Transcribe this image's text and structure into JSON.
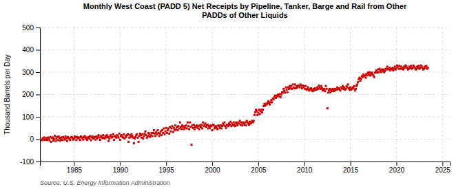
{
  "chart_data": {
    "type": "scatter",
    "title": "Monthly West Coast (PADD 5) Net Receipts by Pipeline, Tanker, Barge and Rail from Other\nPADDs of Other Liquids",
    "ylabel": "Thousand Barrels per Day",
    "source": "Source: U.S. Energy Information Administration",
    "color": "#CC0000",
    "marker": "square",
    "grid": true,
    "xlim": [
      1981.3,
      2025.8
    ],
    "xticks": [
      1985,
      1990,
      1995,
      2000,
      2005,
      2010,
      2015,
      2020,
      2025
    ],
    "ylim": [
      -100,
      500
    ],
    "yticks": [
      -100,
      0,
      100,
      200,
      300,
      400,
      500
    ],
    "x": [
      1981.5,
      1981.5833333333333,
      1981.6666666666667,
      1981.75,
      1981.8333333333333,
      1981.9166666666667,
      1982,
      1982.0833333333333,
      1982.1666666666667,
      1982.25,
      1982.3333333333333,
      1982.4166666666667,
      1982.5,
      1982.5833333333333,
      1982.6666666666667,
      1982.75,
      1982.8333333333333,
      1982.9166666666667,
      1983,
      1983.0833333333333,
      1983.1666666666667,
      1983.25,
      1983.3333333333333,
      1983.4166666666667,
      1983.5,
      1983.5833333333333,
      1983.6666666666667,
      1983.75,
      1983.8333333333333,
      1983.9166666666667,
      1984,
      1984.0833333333333,
      1984.1666666666667,
      1984.25,
      1984.3333333333333,
      1984.4166666666667,
      1984.5,
      1984.5833333333333,
      1984.6666666666667,
      1984.75,
      1984.8333333333333,
      1984.9166666666667,
      1985,
      1985.0833333333333,
      1985.1666666666667,
      1985.25,
      1985.3333333333333,
      1985.4166666666667,
      1985.5,
      1985.5833333333333,
      1985.6666666666667,
      1985.75,
      1985.8333333333333,
      1985.9166666666667,
      1986,
      1986.0833333333333,
      1986.1666666666667,
      1986.25,
      1986.3333333333333,
      1986.4166666666667,
      1986.5,
      1986.5833333333333,
      1986.6666666666667,
      1986.75,
      1986.8333333333333,
      1986.9166666666667,
      1987,
      1987.0833333333333,
      1987.1666666666667,
      1987.25,
      1987.3333333333333,
      1987.4166666666667,
      1987.5,
      1987.5833333333333,
      1987.6666666666667,
      1987.75,
      1987.8333333333333,
      1987.9166666666667,
      1988,
      1988.0833333333333,
      1988.1666666666667,
      1988.25,
      1988.3333333333333,
      1988.4166666666667,
      1988.5,
      1988.5833333333333,
      1988.6666666666667,
      1988.75,
      1988.8333333333333,
      1988.9166666666667,
      1989,
      1989.0833333333333,
      1989.1666666666667,
      1989.25,
      1989.3333333333333,
      1989.4166666666667,
      1989.5,
      1989.5833333333333,
      1989.6666666666667,
      1989.75,
      1989.8333333333333,
      1989.9166666666667,
      1990,
      1990.0833333333333,
      1990.1666666666667,
      1990.25,
      1990.3333333333333,
      1990.4166666666667,
      1990.5,
      1990.5833333333333,
      1990.6666666666667,
      1990.75,
      1990.8333333333333,
      1990.9166666666667,
      1991,
      1991.0833333333333,
      1991.1666666666667,
      1991.25,
      1991.3333333333333,
      1991.4166666666667,
      1991.5,
      1991.5833333333333,
      1991.6666666666667,
      1991.75,
      1991.8333333333333,
      1991.9166666666667,
      1992,
      1992.0833333333333,
      1992.1666666666667,
      1992.25,
      1992.3333333333333,
      1992.4166666666667,
      1992.5,
      1992.5833333333333,
      1992.6666666666667,
      1992.75,
      1992.8333333333333,
      1992.9166666666667,
      1993,
      1993.0833333333333,
      1993.1666666666667,
      1993.25,
      1993.3333333333333,
      1993.4166666666667,
      1993.5,
      1993.5833333333333,
      1993.6666666666667,
      1993.75,
      1993.8333333333333,
      1993.9166666666667,
      1994,
      1994.0833333333333,
      1994.1666666666667,
      1994.25,
      1994.3333333333333,
      1994.4166666666667,
      1994.5,
      1994.5833333333333,
      1994.6666666666667,
      1994.75,
      1994.8333333333333,
      1994.9166666666667,
      1995,
      1995.0833333333333,
      1995.1666666666667,
      1995.25,
      1995.3333333333333,
      1995.4166666666667,
      1995.5,
      1995.5833333333333,
      1995.6666666666667,
      1995.75,
      1995.8333333333333,
      1995.9166666666667,
      1996,
      1996.0833333333333,
      1996.1666666666667,
      1996.25,
      1996.3333333333333,
      1996.4166666666667,
      1996.5,
      1996.5833333333333,
      1996.6666666666667,
      1996.75,
      1996.8333333333333,
      1996.9166666666667,
      1997,
      1997.0833333333333,
      1997.1666666666667,
      1997.25,
      1997.3333333333333,
      1997.4166666666667,
      1997.5,
      1997.5833333333333,
      1997.6666666666667,
      1997.75,
      1997.8333333333333,
      1997.9166666666667,
      1998,
      1998.0833333333333,
      1998.1666666666667,
      1998.25,
      1998.3333333333333,
      1998.4166666666667,
      1998.5,
      1998.5833333333333,
      1998.6666666666667,
      1998.75,
      1998.8333333333333,
      1998.9166666666667,
      1999,
      1999.0833333333333,
      1999.1666666666667,
      1999.25,
      1999.3333333333333,
      1999.4166666666667,
      1999.5,
      1999.5833333333333,
      1999.6666666666667,
      1999.75,
      1999.8333333333333,
      1999.9166666666667,
      2000,
      2000.0833333333333,
      2000.1666666666667,
      2000.25,
      2000.3333333333333,
      2000.4166666666667,
      2000.5,
      2000.5833333333333,
      2000.6666666666667,
      2000.75,
      2000.8333333333333,
      2000.9166666666667,
      2001,
      2001.0833333333333,
      2001.1666666666667,
      2001.25,
      2001.3333333333333,
      2001.4166666666667,
      2001.5,
      2001.5833333333333,
      2001.6666666666667,
      2001.75,
      2001.8333333333333,
      2001.9166666666667,
      2002,
      2002.0833333333333,
      2002.1666666666667,
      2002.25,
      2002.3333333333333,
      2002.4166666666667,
      2002.5,
      2002.5833333333333,
      2002.6666666666667,
      2002.75,
      2002.8333333333333,
      2002.9166666666667,
      2003,
      2003.0833333333333,
      2003.1666666666667,
      2003.25,
      2003.3333333333333,
      2003.4166666666667,
      2003.5,
      2003.5833333333333,
      2003.6666666666667,
      2003.75,
      2003.8333333333333,
      2003.9166666666667,
      2004,
      2004.0833333333333,
      2004.1666666666667,
      2004.25,
      2004.3333333333333,
      2004.4166666666667,
      2004.5,
      2004.5833333333333,
      2004.6666666666667,
      2004.75,
      2004.8333333333333,
      2004.9166666666667,
      2005,
      2005.0833333333333,
      2005.1666666666667,
      2005.25,
      2005.3333333333333,
      2005.4166666666667,
      2005.5,
      2005.5833333333333,
      2005.6666666666667,
      2005.75,
      2005.8333333333333,
      2005.9166666666667,
      2006,
      2006.0833333333333,
      2006.1666666666667,
      2006.25,
      2006.3333333333333,
      2006.4166666666667,
      2006.5,
      2006.5833333333333,
      2006.6666666666667,
      2006.75,
      2006.8333333333333,
      2006.9166666666667,
      2007,
      2007.0833333333333,
      2007.1666666666667,
      2007.25,
      2007.3333333333333,
      2007.4166666666667,
      2007.5,
      2007.5833333333333,
      2007.6666666666667,
      2007.75,
      2007.8333333333333,
      2007.9166666666667,
      2008,
      2008.0833333333333,
      2008.1666666666667,
      2008.25,
      2008.3333333333333,
      2008.4166666666667,
      2008.5,
      2008.5833333333333,
      2008.6666666666667,
      2008.75,
      2008.8333333333333,
      2008.9166666666667,
      2009,
      2009.0833333333333,
      2009.1666666666667,
      2009.25,
      2009.3333333333333,
      2009.4166666666667,
      2009.5,
      2009.5833333333333,
      2009.6666666666667,
      2009.75,
      2009.8333333333333,
      2009.9166666666667,
      2010,
      2010.0833333333333,
      2010.1666666666667,
      2010.25,
      2010.3333333333333,
      2010.4166666666667,
      2010.5,
      2010.5833333333333,
      2010.6666666666667,
      2010.75,
      2010.8333333333333,
      2010.9166666666667,
      2011,
      2011.0833333333333,
      2011.1666666666667,
      2011.25,
      2011.3333333333333,
      2011.4166666666667,
      2011.5,
      2011.5833333333333,
      2011.6666666666667,
      2011.75,
      2011.8333333333333,
      2011.9166666666667,
      2012,
      2012.0833333333333,
      2012.1666666666667,
      2012.25,
      2012.3333333333333,
      2012.4166666666667,
      2012.5,
      2012.5833333333333,
      2012.6666666666667,
      2012.75,
      2012.8333333333333,
      2012.9166666666667,
      2013,
      2013.0833333333333,
      2013.1666666666667,
      2013.25,
      2013.3333333333333,
      2013.4166666666667,
      2013.5,
      2013.5833333333333,
      2013.6666666666667,
      2013.75,
      2013.8333333333333,
      2013.9166666666667,
      2014,
      2014.0833333333333,
      2014.1666666666667,
      2014.25,
      2014.3333333333333,
      2014.4166666666667,
      2014.5,
      2014.5833333333333,
      2014.6666666666667,
      2014.75,
      2014.8333333333333,
      2014.9166666666667,
      2015,
      2015.0833333333333,
      2015.1666666666667,
      2015.25,
      2015.3333333333333,
      2015.4166666666667,
      2015.5,
      2015.5833333333333,
      2015.6666666666667,
      2015.75,
      2015.8333333333333,
      2015.9166666666667,
      2016,
      2016.0833333333333,
      2016.1666666666667,
      2016.25,
      2016.3333333333333,
      2016.4166666666667,
      2016.5,
      2016.5833333333333,
      2016.6666666666667,
      2016.75,
      2016.8333333333333,
      2016.9166666666667,
      2017,
      2017.0833333333333,
      2017.1666666666667,
      2017.25,
      2017.3333333333333,
      2017.4166666666667,
      2017.5,
      2017.5833333333333,
      2017.6666666666667,
      2017.75,
      2017.8333333333333,
      2017.9166666666667,
      2018,
      2018.0833333333333,
      2018.1666666666667,
      2018.25,
      2018.3333333333333,
      2018.4166666666667,
      2018.5,
      2018.5833333333333,
      2018.6666666666667,
      2018.75,
      2018.8333333333333,
      2018.9166666666667,
      2019,
      2019.0833333333333,
      2019.1666666666667,
      2019.25,
      2019.3333333333333,
      2019.4166666666667,
      2019.5,
      2019.5833333333333,
      2019.6666666666667,
      2019.75,
      2019.8333333333333,
      2019.9166666666667,
      2020,
      2020.0833333333333,
      2020.1666666666667,
      2020.25,
      2020.3333333333333,
      2020.4166666666667,
      2020.5,
      2020.5833333333333,
      2020.6666666666667,
      2020.75,
      2020.8333333333333,
      2020.9166666666667,
      2021,
      2021.0833333333333,
      2021.1666666666667,
      2021.25,
      2021.3333333333333,
      2021.4166666666667,
      2021.5,
      2021.5833333333333,
      2021.6666666666667,
      2021.75,
      2021.8333333333333,
      2021.9166666666667,
      2022,
      2022.0833333333333,
      2022.1666666666667,
      2022.25,
      2022.3333333333333,
      2022.4166666666667,
      2022.5,
      2022.5833333333333,
      2022.6666666666667,
      2022.75,
      2022.8333333333333,
      2022.9166666666667,
      2023,
      2023.0833333333333,
      2023.1666666666667,
      2023.25,
      2023.3333333333333,
      2023.4166666666667
    ],
    "values": [
      -5,
      3,
      -2,
      8,
      -3,
      5,
      2,
      -4,
      7,
      3,
      -5,
      10,
      -12,
      5,
      8,
      -6,
      2,
      15,
      -8,
      3,
      10,
      -4,
      12,
      6,
      -6,
      2,
      8,
      -4,
      10,
      5,
      -2,
      12,
      3,
      -8,
      10,
      5,
      2,
      -4,
      8,
      10,
      5,
      -2,
      3,
      12,
      8,
      -4,
      10,
      5,
      3,
      8,
      -4,
      12,
      8,
      5,
      -2,
      10,
      14,
      3,
      8,
      -3,
      5,
      10,
      3,
      14,
      -5,
      8,
      12,
      3,
      7,
      10,
      -2,
      12,
      3,
      10,
      18,
      7,
      -3,
      14,
      10,
      5,
      18,
      7,
      3,
      14,
      7,
      18,
      10,
      -8,
      3,
      14,
      18,
      7,
      10,
      22,
      -3,
      14,
      10,
      7,
      18,
      14,
      7,
      25,
      -3,
      14,
      18,
      10,
      7,
      22,
      3,
      14,
      10,
      18,
      22,
      -12,
      7,
      18,
      10,
      22,
      14,
      7,
      -18,
      3,
      10,
      18,
      22,
      7,
      -12,
      14,
      25,
      18,
      7,
      22,
      3,
      14,
      25,
      35,
      18,
      7,
      14,
      28,
      22,
      10,
      18,
      28,
      14,
      28,
      40,
      25,
      14,
      32,
      22,
      40,
      28,
      14,
      25,
      35,
      18,
      40,
      28,
      48,
      22,
      35,
      50,
      28,
      40,
      48,
      25,
      55,
      35,
      48,
      58,
      32,
      50,
      40,
      62,
      45,
      55,
      40,
      58,
      48,
      75,
      55,
      45,
      62,
      55,
      45,
      58,
      50,
      62,
      48,
      75,
      58,
      45,
      75,
      55,
      -25,
      62,
      50,
      65,
      45,
      55,
      58,
      62,
      50,
      58,
      45,
      62,
      55,
      65,
      48,
      75,
      58,
      62,
      70,
      55,
      62,
      65,
      48,
      58,
      50,
      62,
      58,
      40,
      65,
      62,
      48,
      55,
      58,
      50,
      45,
      62,
      58,
      50,
      62,
      48,
      58,
      70,
      62,
      75,
      58,
      50,
      65,
      62,
      58,
      70,
      65,
      78,
      58,
      70,
      62,
      75,
      65,
      58,
      75,
      70,
      62,
      75,
      70,
      82,
      65,
      75,
      62,
      75,
      70,
      65,
      75,
      62,
      82,
      75,
      70,
      65,
      78,
      70,
      75,
      82,
      75,
      82,
      108,
      120,
      132,
      125,
      108,
      118,
      132,
      112,
      125,
      132,
      120,
      132,
      148,
      158,
      150,
      158,
      155,
      162,
      170,
      162,
      155,
      165,
      175,
      165,
      182,
      178,
      188,
      195,
      185,
      195,
      192,
      200,
      192,
      202,
      188,
      200,
      210,
      208,
      225,
      215,
      208,
      232,
      222,
      210,
      232,
      225,
      238,
      228,
      238,
      225,
      245,
      232,
      228,
      245,
      228,
      238,
      232,
      240,
      238,
      232,
      245,
      240,
      228,
      240,
      232,
      238,
      225,
      238,
      222,
      225,
      232,
      218,
      222,
      225,
      228,
      218,
      215,
      225,
      218,
      228,
      222,
      222,
      232,
      225,
      240,
      232,
      225,
      238,
      228,
      218,
      222,
      225,
      215,
      238,
      225,
      138,
      208,
      218,
      225,
      210,
      222,
      215,
      225,
      218,
      215,
      225,
      222,
      222,
      232,
      225,
      228,
      222,
      218,
      232,
      228,
      238,
      225,
      232,
      222,
      225,
      238,
      232,
      245,
      228,
      222,
      232,
      222,
      225,
      232,
      228,
      238,
      218,
      225,
      238,
      245,
      255,
      268,
      275,
      262,
      270,
      282,
      278,
      290,
      282,
      285,
      275,
      292,
      285,
      298,
      290,
      300,
      285,
      292,
      298,
      290,
      285,
      278,
      298,
      300,
      308,
      298,
      312,
      300,
      315,
      308,
      300,
      312,
      305,
      312,
      300,
      305,
      315,
      312,
      325,
      315,
      312,
      320,
      308,
      315,
      312,
      320,
      308,
      315,
      325,
      312,
      320,
      330,
      325,
      315,
      328,
      315,
      325,
      315,
      320,
      312,
      325,
      320,
      330,
      325,
      320,
      312,
      315,
      325,
      320,
      328,
      315,
      320,
      330,
      325,
      320,
      312,
      315,
      325,
      320,
      328,
      315,
      320,
      330,
      325,
      320,
      312,
      315,
      325,
      320,
      328,
      315,
      320
    ]
  }
}
